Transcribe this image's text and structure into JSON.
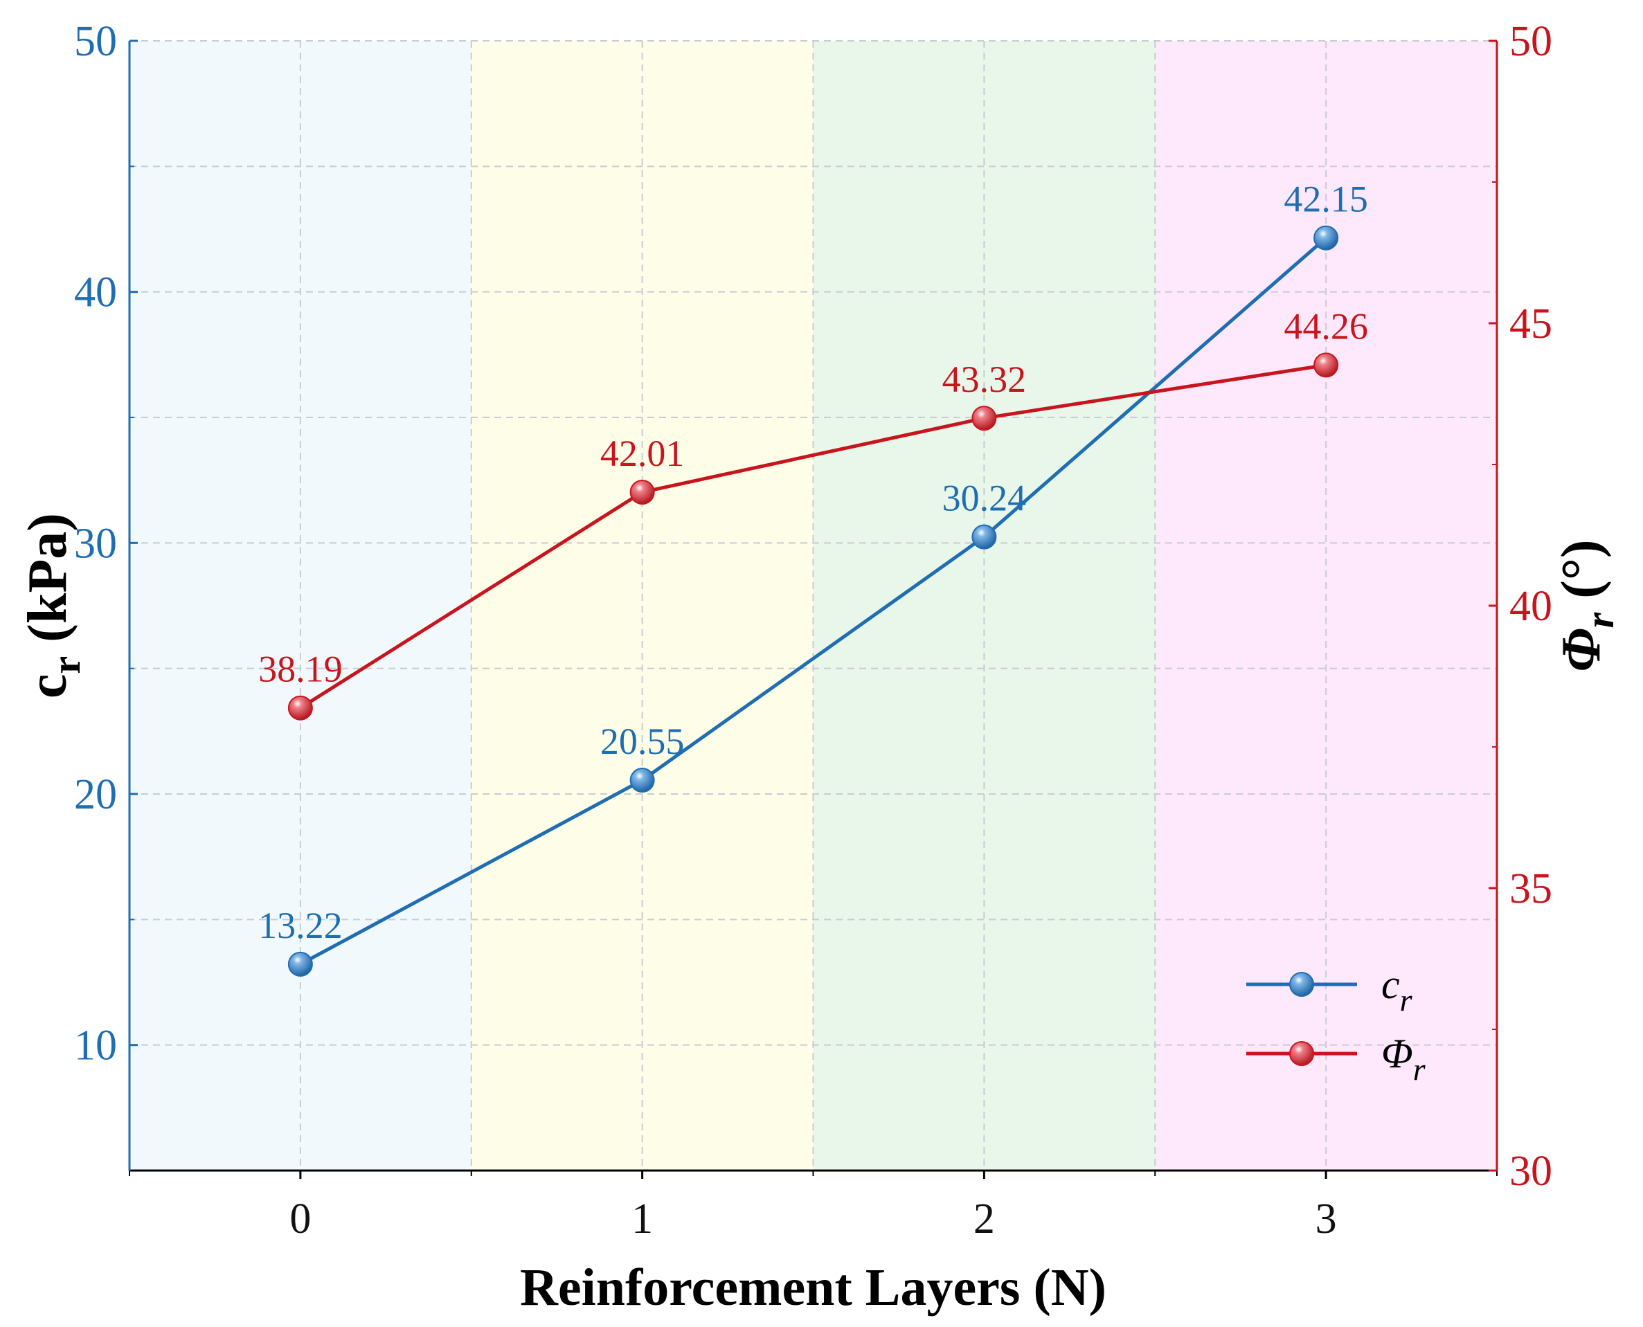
{
  "chart_data": {
    "type": "line",
    "xlabel": "Reinforcement Layers (N)",
    "ylabel_left": {
      "main": "c",
      "sub": "r",
      "unit": " (kPa)"
    },
    "ylabel_right": {
      "main": "Φ",
      "sub": "r",
      "unit": " (°)"
    },
    "categories": [
      "0",
      "1",
      "2",
      "3"
    ],
    "x": [
      0,
      1,
      2,
      3
    ],
    "xlim": [
      -0.5,
      3.5
    ],
    "ylim_left": [
      5,
      50
    ],
    "ylim_right": [
      30,
      50
    ],
    "yticks_left": [
      "10",
      "20",
      "30",
      "40",
      "50"
    ],
    "yticks_right": [
      "30",
      "35",
      "40",
      "45",
      "50"
    ],
    "grid": true,
    "background_bands": [
      {
        "from": -0.5,
        "to": 0.5,
        "color": "#f2f9fd"
      },
      {
        "from": 0.5,
        "to": 1.5,
        "color": "#fefde8"
      },
      {
        "from": 1.5,
        "to": 2.5,
        "color": "#e9f6ea"
      },
      {
        "from": 2.5,
        "to": 3.5,
        "color": "#fde9fb"
      }
    ],
    "series": [
      {
        "name": "c_r",
        "legend_main": "c",
        "legend_sub": "r",
        "axis": "left",
        "color": "#1f6db3",
        "values": [
          13.22,
          20.55,
          30.24,
          42.15
        ],
        "labels": [
          "13.22",
          "20.55",
          "30.24",
          "42.15"
        ]
      },
      {
        "name": "Φ_r",
        "legend_main": "Φ",
        "legend_sub": "r",
        "axis": "right",
        "color": "#c8151d",
        "values": [
          38.19,
          42.01,
          43.32,
          44.26
        ],
        "labels": [
          "38.19",
          "42.01",
          "43.32",
          "44.26"
        ]
      }
    ],
    "legend_position": "bottom-right"
  }
}
